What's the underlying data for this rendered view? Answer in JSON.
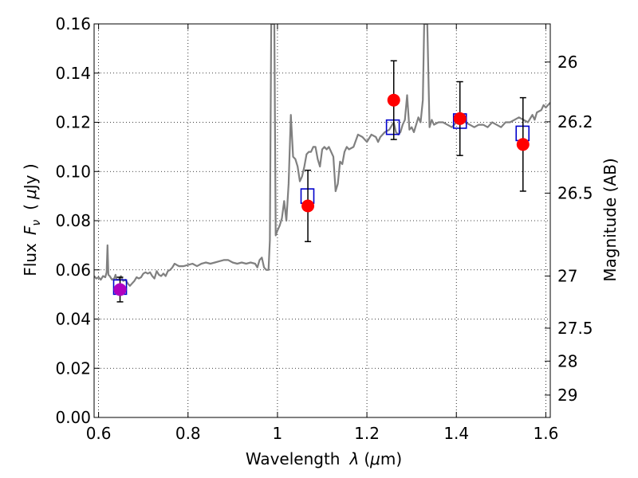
{
  "chart_data": {
    "type": "scatter",
    "xlabel": {
      "main": "Wavelength",
      "symbol": "λ",
      "unit_open": "(",
      "unit_mu": "μ",
      "unit_rest": "m)"
    },
    "ylabel": {
      "main": "Flux",
      "symbol": "F",
      "subscript": "ν",
      "unit_open": "(",
      "unit_mu": "μ",
      "unit_rest": "Jy )"
    },
    "y2label": "Magnitude (AB)",
    "xlim": [
      0.59,
      1.61
    ],
    "ylim": [
      0.0,
      0.16
    ],
    "x_ticks": [
      0.6,
      0.8,
      1.0,
      1.2,
      1.4,
      1.6
    ],
    "x_tick_labels": [
      "0.6",
      "0.8",
      "1",
      "1.2",
      "1.4",
      "1.6"
    ],
    "y_ticks": [
      0.0,
      0.02,
      0.04,
      0.06,
      0.08,
      0.1,
      0.12,
      0.14,
      0.16
    ],
    "y_tick_labels": [
      "0.00",
      "0.02",
      "0.04",
      "0.06",
      "0.08",
      "0.10",
      "0.12",
      "0.14",
      "0.16"
    ],
    "y2_ticks": [
      {
        "label": "26",
        "flux": 0.1445
      },
      {
        "label": "26.2",
        "flux": 0.1202
      },
      {
        "label": "26.5",
        "flux": 0.0912
      },
      {
        "label": "27",
        "flux": 0.0575
      },
      {
        "label": "27.5",
        "flux": 0.0363
      },
      {
        "label": "28",
        "flux": 0.0229
      },
      {
        "label": "29",
        "flux": 0.0091
      }
    ],
    "grid": true,
    "colors": {
      "spectrum": "#808080",
      "model_boxes": "#0000cc",
      "observed": "#ff0000",
      "observed_first": "#b000c0",
      "errorbar": "#000000"
    },
    "series": [
      {
        "kind": "line",
        "points": [
          [
            0.59,
            0.0575
          ],
          [
            0.595,
            0.0565
          ],
          [
            0.6,
            0.057
          ],
          [
            0.605,
            0.056
          ],
          [
            0.61,
            0.0575
          ],
          [
            0.615,
            0.057
          ],
          [
            0.618,
            0.059
          ],
          [
            0.62,
            0.07
          ],
          [
            0.622,
            0.058
          ],
          [
            0.625,
            0.0575
          ],
          [
            0.63,
            0.056
          ],
          [
            0.635,
            0.0565
          ],
          [
            0.638,
            0.058
          ],
          [
            0.64,
            0.056
          ],
          [
            0.645,
            0.056
          ],
          [
            0.65,
            0.0575
          ],
          [
            0.655,
            0.0555
          ],
          [
            0.66,
            0.056
          ],
          [
            0.665,
            0.0545
          ],
          [
            0.67,
            0.0535
          ],
          [
            0.675,
            0.0545
          ],
          [
            0.68,
            0.0555
          ],
          [
            0.685,
            0.057
          ],
          [
            0.69,
            0.0565
          ],
          [
            0.695,
            0.057
          ],
          [
            0.7,
            0.0585
          ],
          [
            0.705,
            0.059
          ],
          [
            0.71,
            0.0585
          ],
          [
            0.715,
            0.059
          ],
          [
            0.72,
            0.0575
          ],
          [
            0.725,
            0.0565
          ],
          [
            0.73,
            0.0595
          ],
          [
            0.735,
            0.058
          ],
          [
            0.74,
            0.0575
          ],
          [
            0.745,
            0.0585
          ],
          [
            0.75,
            0.0575
          ],
          [
            0.755,
            0.0595
          ],
          [
            0.76,
            0.06
          ],
          [
            0.765,
            0.061
          ],
          [
            0.77,
            0.0625
          ],
          [
            0.775,
            0.062
          ],
          [
            0.78,
            0.0615
          ],
          [
            0.79,
            0.0615
          ],
          [
            0.8,
            0.062
          ],
          [
            0.81,
            0.0625
          ],
          [
            0.82,
            0.0615
          ],
          [
            0.83,
            0.0625
          ],
          [
            0.84,
            0.063
          ],
          [
            0.85,
            0.0625
          ],
          [
            0.86,
            0.063
          ],
          [
            0.87,
            0.0635
          ],
          [
            0.88,
            0.064
          ],
          [
            0.89,
            0.064
          ],
          [
            0.9,
            0.063
          ],
          [
            0.91,
            0.0625
          ],
          [
            0.92,
            0.063
          ],
          [
            0.93,
            0.0625
          ],
          [
            0.94,
            0.063
          ],
          [
            0.95,
            0.0625
          ],
          [
            0.955,
            0.061
          ],
          [
            0.96,
            0.064
          ],
          [
            0.965,
            0.065
          ],
          [
            0.97,
            0.061
          ],
          [
            0.975,
            0.06
          ],
          [
            0.98,
            0.06
          ],
          [
            0.983,
            0.072
          ],
          [
            0.986,
            0.16
          ],
          [
            0.993,
            0.16
          ],
          [
            0.996,
            0.074
          ],
          [
            1.0,
            0.076
          ],
          [
            1.005,
            0.078
          ],
          [
            1.01,
            0.081
          ],
          [
            1.015,
            0.088
          ],
          [
            1.02,
            0.08
          ],
          [
            1.025,
            0.095
          ],
          [
            1.03,
            0.123
          ],
          [
            1.035,
            0.106
          ],
          [
            1.04,
            0.105
          ],
          [
            1.045,
            0.102
          ],
          [
            1.05,
            0.096
          ],
          [
            1.055,
            0.098
          ],
          [
            1.06,
            0.102
          ],
          [
            1.065,
            0.107
          ],
          [
            1.07,
            0.108
          ],
          [
            1.075,
            0.108
          ],
          [
            1.08,
            0.11
          ],
          [
            1.085,
            0.11
          ],
          [
            1.09,
            0.105
          ],
          [
            1.095,
            0.102
          ],
          [
            1.1,
            0.109
          ],
          [
            1.105,
            0.11
          ],
          [
            1.11,
            0.109
          ],
          [
            1.115,
            0.11
          ],
          [
            1.12,
            0.108
          ],
          [
            1.125,
            0.106
          ],
          [
            1.13,
            0.092
          ],
          [
            1.135,
            0.095
          ],
          [
            1.14,
            0.104
          ],
          [
            1.145,
            0.103
          ],
          [
            1.15,
            0.108
          ],
          [
            1.155,
            0.11
          ],
          [
            1.16,
            0.109
          ],
          [
            1.17,
            0.11
          ],
          [
            1.18,
            0.115
          ],
          [
            1.19,
            0.114
          ],
          [
            1.2,
            0.112
          ],
          [
            1.21,
            0.115
          ],
          [
            1.22,
            0.114
          ],
          [
            1.225,
            0.112
          ],
          [
            1.23,
            0.114
          ],
          [
            1.24,
            0.116
          ],
          [
            1.25,
            0.117
          ],
          [
            1.26,
            0.12
          ],
          [
            1.265,
            0.116
          ],
          [
            1.27,
            0.115
          ],
          [
            1.275,
            0.116
          ],
          [
            1.28,
            0.119
          ],
          [
            1.285,
            0.121
          ],
          [
            1.29,
            0.131
          ],
          [
            1.295,
            0.117
          ],
          [
            1.3,
            0.118
          ],
          [
            1.305,
            0.116
          ],
          [
            1.31,
            0.119
          ],
          [
            1.315,
            0.122
          ],
          [
            1.32,
            0.12
          ],
          [
            1.325,
            0.129
          ],
          [
            1.328,
            0.16
          ],
          [
            1.335,
            0.16
          ],
          [
            1.34,
            0.118
          ],
          [
            1.345,
            0.121
          ],
          [
            1.35,
            0.119
          ],
          [
            1.36,
            0.12
          ],
          [
            1.37,
            0.12
          ],
          [
            1.38,
            0.119
          ],
          [
            1.39,
            0.118
          ],
          [
            1.4,
            0.12
          ],
          [
            1.41,
            0.121
          ],
          [
            1.42,
            0.12
          ],
          [
            1.43,
            0.119
          ],
          [
            1.44,
            0.118
          ],
          [
            1.45,
            0.119
          ],
          [
            1.46,
            0.119
          ],
          [
            1.47,
            0.118
          ],
          [
            1.48,
            0.12
          ],
          [
            1.49,
            0.119
          ],
          [
            1.5,
            0.118
          ],
          [
            1.51,
            0.12
          ],
          [
            1.52,
            0.12
          ],
          [
            1.53,
            0.121
          ],
          [
            1.54,
            0.122
          ],
          [
            1.55,
            0.121
          ],
          [
            1.56,
            0.12
          ],
          [
            1.57,
            0.123
          ],
          [
            1.575,
            0.121
          ],
          [
            1.58,
            0.124
          ],
          [
            1.59,
            0.125
          ],
          [
            1.595,
            0.127
          ],
          [
            1.6,
            0.126
          ],
          [
            1.605,
            0.127
          ],
          [
            1.61,
            0.128
          ]
        ]
      },
      {
        "kind": "model_boxes",
        "x": [
          0.648,
          1.067,
          1.258,
          1.408,
          1.548
        ],
        "y": [
          0.053,
          0.09,
          0.118,
          0.1205,
          0.1155
        ]
      },
      {
        "kind": "observed",
        "x": [
          0.648,
          1.068,
          1.26,
          1.408,
          1.549
        ],
        "y": [
          0.052,
          0.086,
          0.129,
          0.1215,
          0.111
        ],
        "err": [
          0.005,
          0.0145,
          0.016,
          0.015,
          0.019
        ]
      }
    ]
  }
}
